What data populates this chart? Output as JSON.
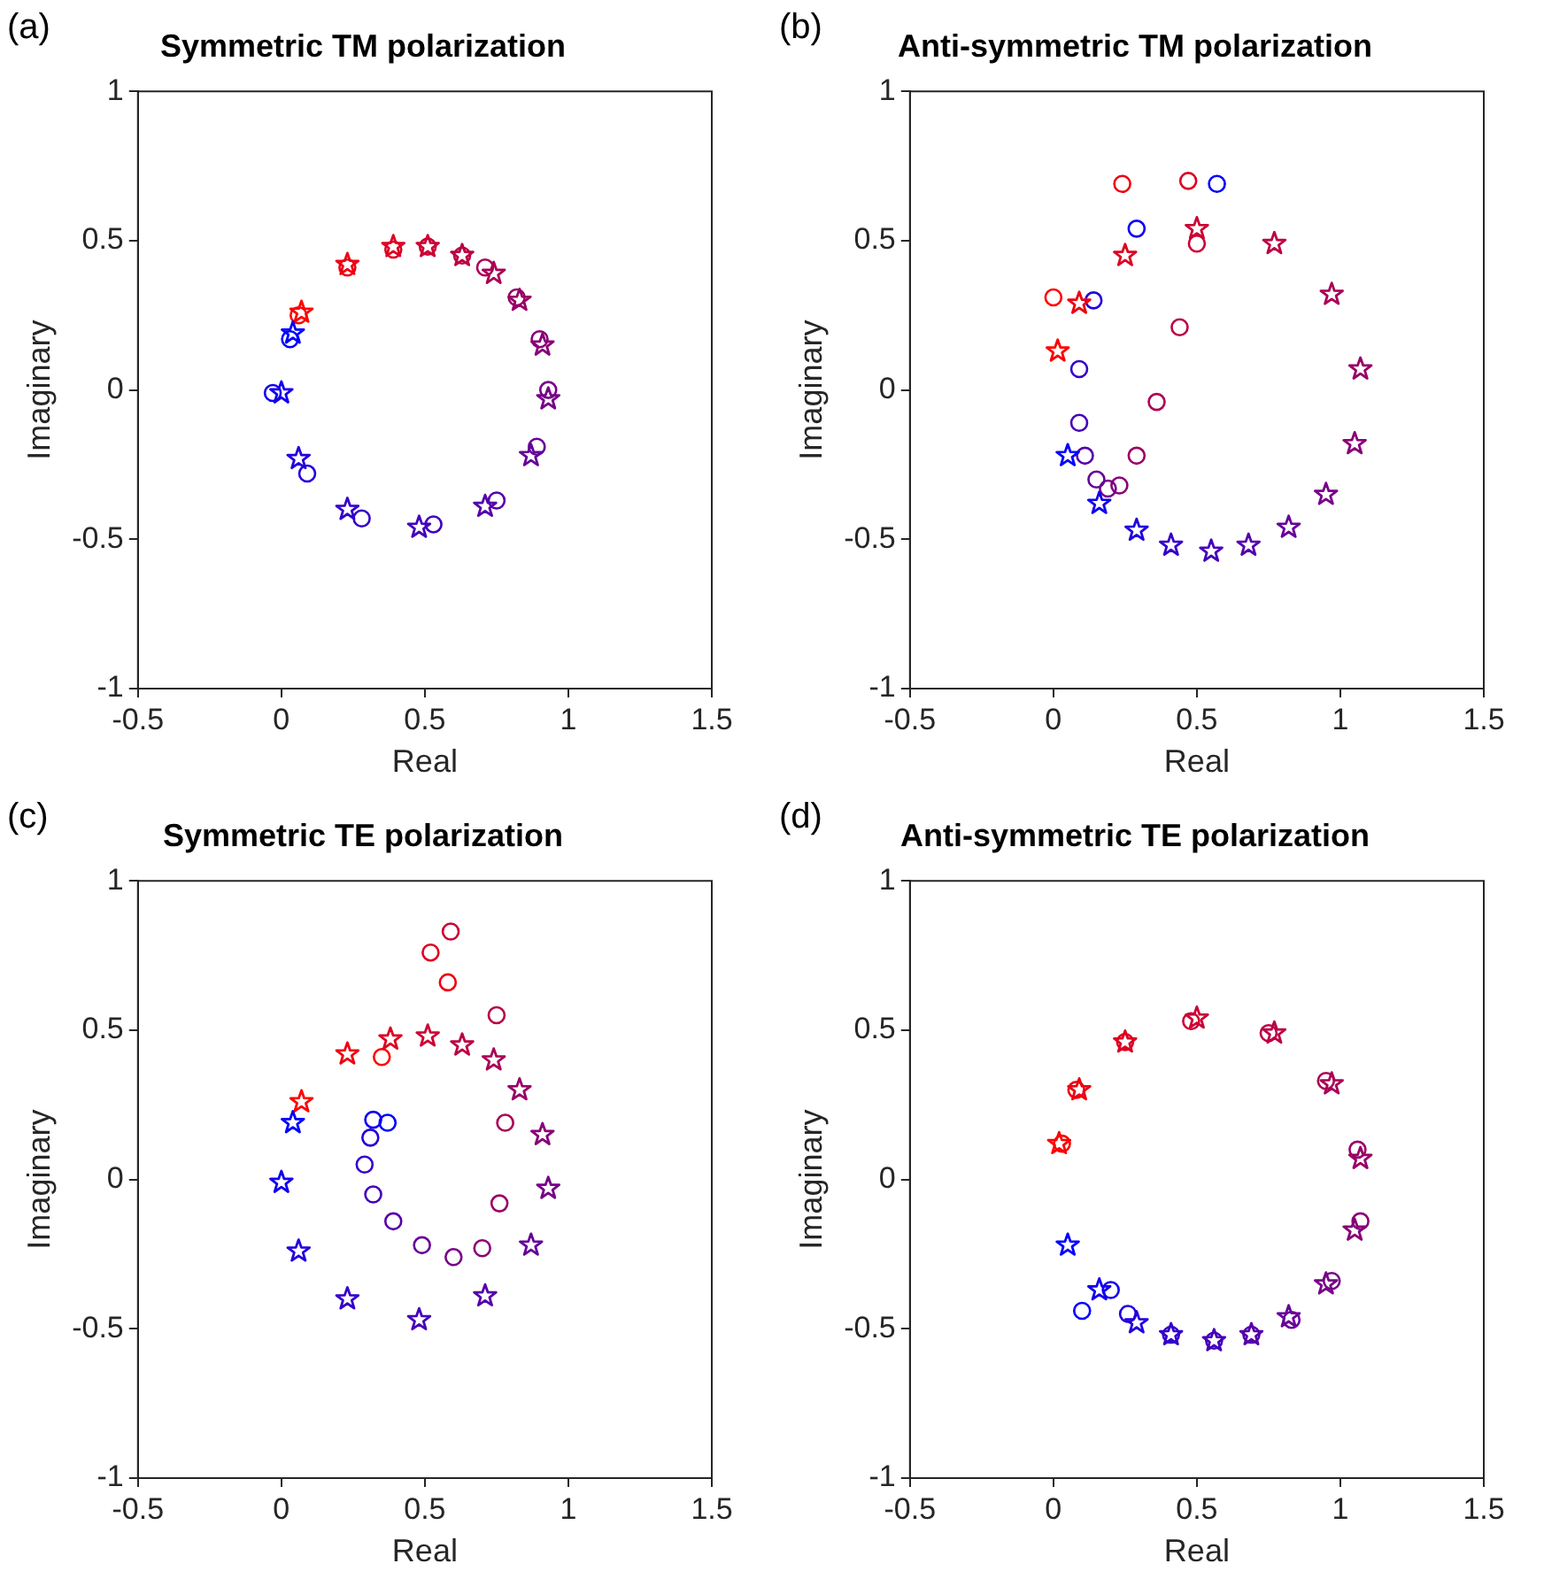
{
  "chart_data": [
    {
      "type": "scatter",
      "title": "Symmetric TM polarization",
      "xlabel": "Real",
      "ylabel": "Imaginary",
      "annotations": [
        "(a)"
      ],
      "xlim": [
        -0.5,
        1.5
      ],
      "ylim": [
        -1,
        1
      ],
      "xticks": [
        -0.5,
        0,
        0.5,
        1,
        1.5
      ],
      "yticks": [
        -1,
        -0.5,
        0,
        0.5,
        1
      ],
      "grid": false,
      "legend": false,
      "series": [
        {
          "marker": "circle",
          "x": [
            0.06,
            0.23,
            0.39,
            0.51,
            0.63,
            0.71,
            0.82,
            0.9,
            0.93,
            0.89,
            0.75,
            0.53,
            0.28,
            0.09,
            -0.03,
            0.03
          ],
          "values": [
            0.25,
            0.41,
            0.47,
            0.48,
            0.45,
            0.41,
            0.31,
            0.17,
            0.0,
            -0.19,
            -0.37,
            -0.45,
            -0.43,
            -0.28,
            -0.01,
            0.17
          ],
          "colors": [
            "#ff0000",
            "#ee0011",
            "#dd0022",
            "#cc0033",
            "#bb0044",
            "#aa0055",
            "#990066",
            "#880077",
            "#770088",
            "#660099",
            "#5500aa",
            "#4400bb",
            "#3300cc",
            "#2200dd",
            "#1100ee",
            "#0000ff"
          ]
        },
        {
          "marker": "star",
          "x": [
            0.07,
            0.23,
            0.39,
            0.51,
            0.63,
            0.74,
            0.83,
            0.91,
            0.93,
            0.87,
            0.71,
            0.48,
            0.23,
            0.06,
            0.0,
            0.04
          ],
          "values": [
            0.26,
            0.42,
            0.48,
            0.48,
            0.45,
            0.39,
            0.3,
            0.15,
            -0.03,
            -0.22,
            -0.39,
            -0.46,
            -0.4,
            -0.23,
            -0.01,
            0.19
          ],
          "colors": [
            "#ff0000",
            "#ee0011",
            "#dd0022",
            "#cc0033",
            "#bb0044",
            "#aa0055",
            "#990066",
            "#880077",
            "#770088",
            "#660099",
            "#5500aa",
            "#4400bb",
            "#3300cc",
            "#2200dd",
            "#1100ee",
            "#0000ff"
          ]
        }
      ]
    },
    {
      "type": "scatter",
      "title": "Anti-symmetric TM polarization",
      "xlabel": "Real",
      "ylabel": "Imaginary",
      "annotations": [
        "(b)"
      ],
      "xlim": [
        -0.5,
        1.5
      ],
      "ylim": [
        -1,
        1
      ],
      "xticks": [
        -0.5,
        0,
        0.5,
        1,
        1.5
      ],
      "yticks": [
        -1,
        -0.5,
        0,
        0.5,
        1
      ],
      "grid": false,
      "legend": false,
      "series": [
        {
          "marker": "circle",
          "x": [
            0.0,
            0.24,
            0.47,
            0.5,
            0.44,
            0.36,
            0.29,
            0.23,
            0.19,
            0.15,
            0.11,
            0.09,
            0.09,
            0.14,
            0.29,
            0.57
          ],
          "values": [
            0.31,
            0.69,
            0.7,
            0.49,
            0.21,
            -0.04,
            -0.22,
            -0.32,
            -0.33,
            -0.3,
            -0.22,
            -0.11,
            0.07,
            0.3,
            0.54,
            0.69
          ],
          "colors": [
            "#ff0000",
            "#ee0011",
            "#dd0022",
            "#cc0033",
            "#bb0044",
            "#aa0055",
            "#990066",
            "#880077",
            "#770088",
            "#660099",
            "#5500aa",
            "#4400bb",
            "#3300cc",
            "#2200dd",
            "#1100ee",
            "#0000ff"
          ]
        },
        {
          "marker": "star",
          "x": [
            0.015,
            0.09,
            0.25,
            0.5,
            0.77,
            0.97,
            1.07,
            1.05,
            0.95,
            0.82,
            0.68,
            0.55,
            0.41,
            0.29,
            0.16,
            0.05
          ],
          "values": [
            0.13,
            0.29,
            0.45,
            0.54,
            0.49,
            0.32,
            0.07,
            -0.18,
            -0.35,
            -0.46,
            -0.52,
            -0.54,
            -0.52,
            -0.47,
            -0.38,
            -0.22
          ],
          "colors": [
            "#ff0000",
            "#ee0011",
            "#dd0022",
            "#cc0033",
            "#bb0044",
            "#aa0055",
            "#990066",
            "#880077",
            "#770088",
            "#660099",
            "#5500aa",
            "#4400bb",
            "#3300cc",
            "#2200dd",
            "#1100ee",
            "#0000ff"
          ]
        }
      ]
    },
    {
      "type": "scatter",
      "title": "Symmetric TE polarization",
      "xlabel": "Real",
      "ylabel": "Imaginary",
      "annotations": [
        "(c)"
      ],
      "xlim": [
        -0.5,
        1.5
      ],
      "ylim": [
        -1,
        1
      ],
      "xticks": [
        -0.5,
        0,
        0.5,
        1,
        1.5
      ],
      "yticks": [
        -1,
        -0.5,
        0,
        0.5,
        1
      ],
      "grid": false,
      "legend": false,
      "series": [
        {
          "marker": "circle",
          "x": [
            0.35,
            0.58,
            0.52,
            0.59,
            0.75,
            0.78,
            0.76,
            0.7,
            0.6,
            0.49,
            0.39,
            0.32,
            0.29,
            0.31,
            0.32,
            0.37
          ],
          "values": [
            0.41,
            0.66,
            0.76,
            0.83,
            0.55,
            0.19,
            -0.08,
            -0.23,
            -0.26,
            -0.22,
            -0.14,
            -0.05,
            0.05,
            0.14,
            0.2,
            0.19
          ],
          "colors": [
            "#ff0000",
            "#ee0011",
            "#dd0022",
            "#cc0033",
            "#bb0044",
            "#aa0055",
            "#990066",
            "#880077",
            "#770088",
            "#660099",
            "#5500aa",
            "#4400bb",
            "#3300cc",
            "#2200dd",
            "#1100ee",
            "#0000ff"
          ]
        },
        {
          "marker": "star",
          "x": [
            0.07,
            0.23,
            0.38,
            0.51,
            0.63,
            0.74,
            0.83,
            0.91,
            0.93,
            0.87,
            0.71,
            0.48,
            0.23,
            0.06,
            0.0,
            0.04
          ],
          "values": [
            0.26,
            0.42,
            0.47,
            0.48,
            0.45,
            0.4,
            0.3,
            0.15,
            -0.03,
            -0.22,
            -0.39,
            -0.47,
            -0.4,
            -0.24,
            -0.01,
            0.19
          ],
          "colors": [
            "#ff0000",
            "#ee0011",
            "#dd0022",
            "#cc0033",
            "#bb0044",
            "#aa0055",
            "#990066",
            "#880077",
            "#770088",
            "#660099",
            "#5500aa",
            "#4400bb",
            "#3300cc",
            "#2200dd",
            "#1100ee",
            "#0000ff"
          ]
        }
      ]
    },
    {
      "type": "scatter",
      "title": "Anti-symmetric TE polarization",
      "xlabel": "Real",
      "ylabel": "Imaginary",
      "annotations": [
        "(d)"
      ],
      "xlim": [
        -0.5,
        1.5
      ],
      "ylim": [
        -1,
        1
      ],
      "xticks": [
        -0.5,
        0,
        0.5,
        1,
        1.5
      ],
      "yticks": [
        -1,
        -0.5,
        0,
        0.5,
        1
      ],
      "grid": false,
      "legend": false,
      "series": [
        {
          "marker": "circle",
          "x": [
            0.03,
            0.08,
            0.25,
            0.48,
            0.75,
            0.95,
            1.06,
            1.07,
            0.97,
            0.83,
            0.69,
            0.56,
            0.41,
            0.26,
            0.2,
            0.1
          ],
          "values": [
            0.12,
            0.3,
            0.46,
            0.53,
            0.49,
            0.33,
            0.1,
            -0.14,
            -0.34,
            -0.47,
            -0.52,
            -0.54,
            -0.52,
            -0.45,
            -0.37,
            -0.44
          ],
          "colors": [
            "#ff0000",
            "#ee0011",
            "#dd0022",
            "#cc0033",
            "#bb0044",
            "#aa0055",
            "#990066",
            "#880077",
            "#770088",
            "#660099",
            "#5500aa",
            "#4400bb",
            "#3300cc",
            "#2200dd",
            "#1100ee",
            "#0000ff"
          ]
        },
        {
          "marker": "star",
          "x": [
            0.02,
            0.09,
            0.25,
            0.5,
            0.77,
            0.97,
            1.07,
            1.05,
            0.95,
            0.82,
            0.69,
            0.56,
            0.41,
            0.29,
            0.16,
            0.05
          ],
          "values": [
            0.12,
            0.3,
            0.46,
            0.54,
            0.49,
            0.32,
            0.07,
            -0.17,
            -0.35,
            -0.46,
            -0.52,
            -0.54,
            -0.52,
            -0.48,
            -0.37,
            -0.22
          ],
          "colors": [
            "#ff0000",
            "#ee0011",
            "#dd0022",
            "#cc0033",
            "#bb0044",
            "#aa0055",
            "#990066",
            "#880077",
            "#770088",
            "#660099",
            "#5500aa",
            "#4400bb",
            "#3300cc",
            "#2200dd",
            "#1100ee",
            "#0000ff"
          ]
        }
      ]
    }
  ]
}
